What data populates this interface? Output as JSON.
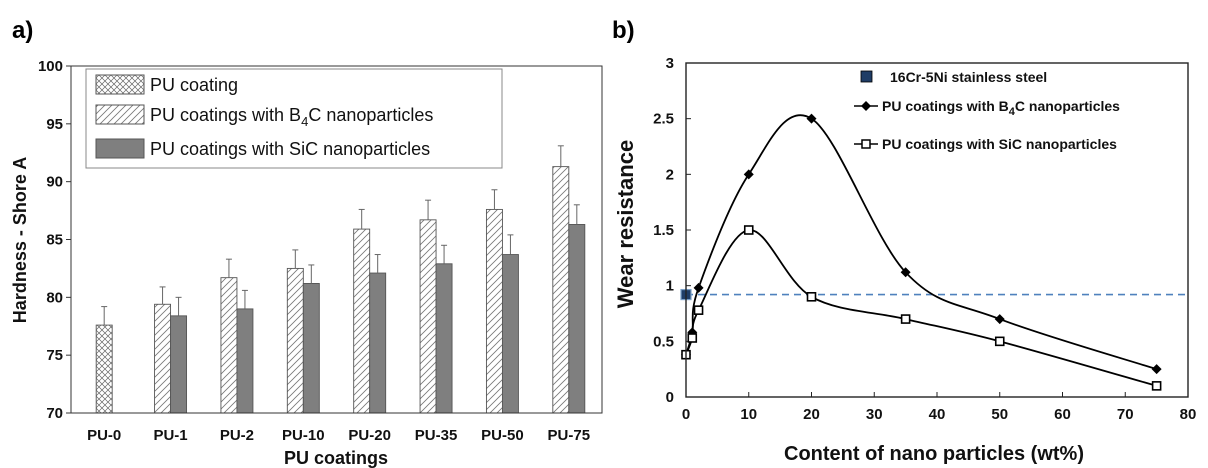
{
  "chart_data": [
    {
      "panel": "a)",
      "type": "bar",
      "xlabel": "PU coatings",
      "ylabel": "Hardness - Shore A",
      "ylim": [
        70,
        100
      ],
      "yticks": [
        70,
        75,
        80,
        85,
        90,
        95,
        100
      ],
      "categories": [
        "PU-0",
        "PU-1",
        "PU-2",
        "PU-10",
        "PU-20",
        "PU-35",
        "PU-50",
        "PU-75"
      ],
      "legend": [
        "PU coating",
        "PU coatings with B",
        "4",
        "C nanoparticles",
        "PU coatings with SiC nanoparticles"
      ],
      "series": [
        {
          "name": "PU coating",
          "pattern": "crosshatch",
          "values": [
            77.6,
            null,
            null,
            null,
            null,
            null,
            null,
            null
          ],
          "errors": [
            1.6,
            null,
            null,
            null,
            null,
            null,
            null,
            null
          ]
        },
        {
          "name": "PU coatings with B4C nanoparticles",
          "pattern": "diagonal",
          "values": [
            null,
            79.4,
            81.7,
            82.5,
            85.9,
            86.7,
            87.6,
            91.3
          ],
          "errors": [
            null,
            1.5,
            1.6,
            1.6,
            1.7,
            1.7,
            1.7,
            1.8
          ]
        },
        {
          "name": "PU coatings with SiC nanoparticles",
          "color": "#7f7f7f",
          "values": [
            null,
            78.4,
            79.0,
            81.2,
            82.1,
            82.9,
            83.7,
            86.3
          ],
          "errors": [
            null,
            1.6,
            1.6,
            1.6,
            1.6,
            1.6,
            1.7,
            1.7
          ]
        }
      ],
      "legend_placement": "top-left",
      "grid": false
    },
    {
      "panel": "b)",
      "type": "line",
      "xlabel": "Content of nano particles (wt%)",
      "ylabel": "Wear resistance",
      "xlim": [
        0,
        80
      ],
      "ylim": [
        0,
        3
      ],
      "xticks": [
        0,
        10,
        20,
        30,
        40,
        50,
        60,
        70,
        80
      ],
      "yticks": [
        0,
        0.5,
        1,
        1.5,
        2,
        2.5,
        3
      ],
      "ytick_labels": [
        "0",
        "0.5",
        "1",
        "1.5",
        "2",
        "2.5",
        "3"
      ],
      "legend": [
        "16Cr-5Ni  stainless steel",
        "PU coatings with B",
        "4",
        "C nanoparticles",
        "PU coatings with SiC nanoparticles"
      ],
      "series": [
        {
          "name": "PU coatings with B4C nanoparticles",
          "marker": "diamond",
          "x": [
            0,
            1,
            2,
            10,
            20,
            35,
            50,
            75
          ],
          "y": [
            0.38,
            0.58,
            0.98,
            2.0,
            2.5,
            1.12,
            0.7,
            0.25
          ]
        },
        {
          "name": "PU coatings with SiC nanoparticles",
          "marker": "open-square",
          "x": [
            0,
            1,
            2,
            10,
            20,
            35,
            50,
            75
          ],
          "y": [
            0.38,
            0.53,
            0.78,
            1.5,
            0.9,
            0.7,
            0.5,
            0.1
          ]
        },
        {
          "name": "16Cr-5Ni stainless steel",
          "marker": "filled-square",
          "x": [
            0
          ],
          "y": [
            0.92
          ]
        }
      ],
      "reference_line": {
        "y": 0.92,
        "style": "dashed",
        "color": "#4f81bd"
      },
      "legend_placement": "top-right",
      "grid": false
    }
  ]
}
